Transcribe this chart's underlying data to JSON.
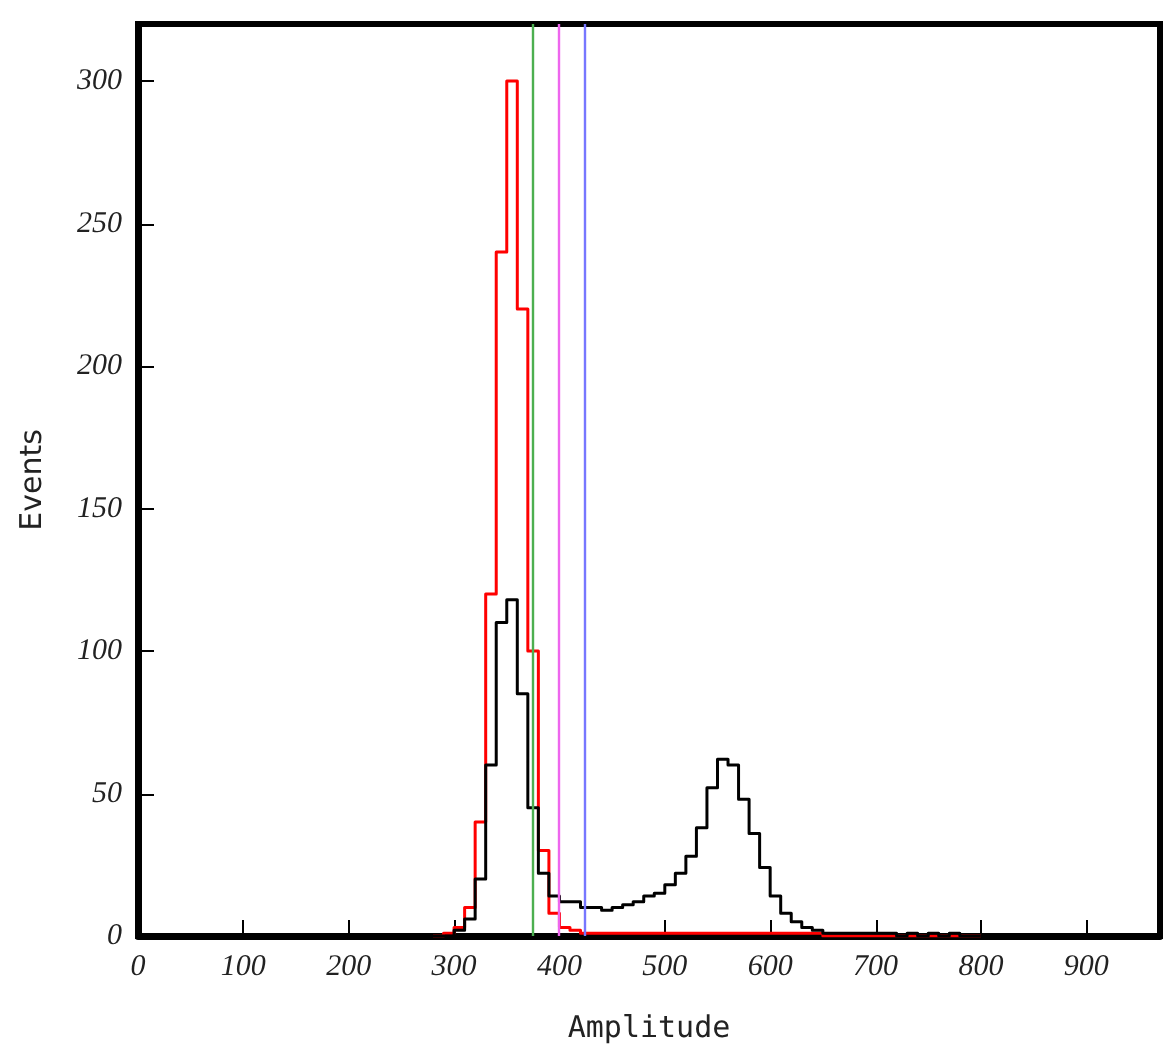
{
  "chart_data": {
    "type": "histogram",
    "xlabel": "Amplitude",
    "ylabel": "Events",
    "bins": [
      280,
      290,
      300,
      310,
      320,
      330,
      340,
      350,
      360,
      370,
      380,
      390,
      400,
      410,
      420,
      430,
      440,
      450,
      460,
      470,
      480,
      490,
      500,
      510,
      520,
      530,
      540,
      550,
      560,
      570,
      580,
      590,
      600,
      610,
      620,
      630,
      640,
      650,
      660,
      670,
      680,
      690,
      700,
      710,
      720,
      730,
      740,
      750,
      760,
      770,
      780,
      790,
      800
    ],
    "series": [
      {
        "color": "#ff0000",
        "values": [
          0,
          1,
          3,
          10,
          40,
          120,
          240,
          300,
          220,
          100,
          30,
          8,
          3,
          2,
          1,
          1,
          1,
          1,
          1,
          1,
          1,
          1,
          1,
          1,
          1,
          1,
          1,
          1,
          1,
          1,
          1,
          1,
          1,
          1,
          1,
          1,
          1,
          0,
          0,
          0,
          0,
          0,
          0,
          0,
          0,
          0,
          0,
          0,
          0,
          0,
          0,
          0
        ]
      },
      {
        "color": "#000000",
        "values": [
          0,
          0,
          2,
          6,
          20,
          60,
          110,
          118,
          85,
          45,
          22,
          14,
          12,
          12,
          10,
          10,
          9,
          10,
          11,
          12,
          14,
          15,
          18,
          22,
          28,
          38,
          52,
          62,
          60,
          48,
          36,
          24,
          14,
          8,
          5,
          3,
          2,
          1,
          1,
          1,
          1,
          1,
          1,
          1,
          0,
          1,
          0,
          1,
          0,
          1,
          0,
          0
        ]
      }
    ],
    "ref_lines": [
      {
        "axis": "x",
        "value": 375,
        "color": "#4caf50"
      },
      {
        "axis": "x",
        "value": 400,
        "color": "#ee66ee"
      },
      {
        "axis": "x",
        "value": 423,
        "color": "#7777ff"
      }
    ],
    "xlim": [
      0,
      970
    ],
    "xticks": [
      0,
      100,
      200,
      300,
      400,
      500,
      600,
      700,
      800,
      900
    ],
    "ylim": [
      0,
      320
    ],
    "yticks": [
      0,
      50,
      100,
      150,
      200,
      250,
      300
    ],
    "grid": false
  }
}
